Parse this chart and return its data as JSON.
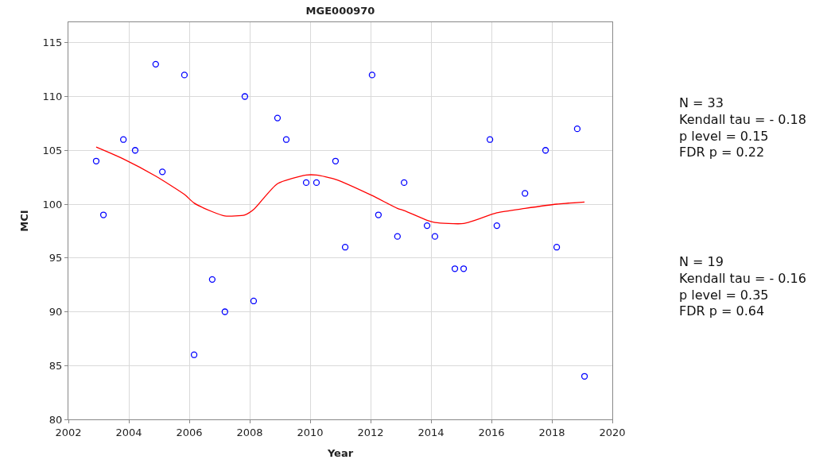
{
  "chart_data": {
    "type": "scatter",
    "title": "MGE000970",
    "xlabel": "Year",
    "ylabel": "MCI",
    "xlim": [
      2002,
      2020
    ],
    "xticks": [
      2002,
      2004,
      2006,
      2008,
      2010,
      2012,
      2014,
      2016,
      2018,
      2020
    ],
    "ylim": [
      80,
      116.9
    ],
    "yticks": [
      80,
      85,
      90,
      95,
      100,
      105,
      110,
      115
    ],
    "grid": true,
    "legend": false,
    "series": [
      {
        "marker": "circle",
        "color": "#0000ff",
        "x": [
          2002.92,
          2003.16,
          2003.82,
          2004.21,
          2004.89,
          2005.11,
          2005.84,
          2006.16,
          2006.76,
          2007.18,
          2007.84,
          2008.13,
          2008.92,
          2009.21,
          2009.87,
          2010.21,
          2010.84,
          2011.16,
          2012.05,
          2012.26,
          2012.89,
          2013.11,
          2013.87,
          2014.13,
          2014.79,
          2015.08,
          2015.95,
          2016.18,
          2017.11,
          2017.79,
          2018.16,
          2018.84,
          2019.08
        ],
        "values": [
          104,
          99,
          106,
          105,
          113,
          103,
          112,
          86,
          93,
          90,
          110,
          91,
          108,
          106,
          102,
          102,
          104,
          96,
          112,
          99,
          97,
          102,
          98,
          97,
          94,
          94,
          106,
          98,
          101,
          105,
          96,
          107,
          84
        ]
      },
      {
        "type": "line",
        "marker": "none",
        "color": "#ff0000",
        "x": [
          2002.92,
          2003.82,
          2004.89,
          2005.84,
          2006.16,
          2006.76,
          2007.18,
          2007.84,
          2008.13,
          2008.92,
          2009.87,
          2010.21,
          2010.84,
          2012.05,
          2012.89,
          2013.11,
          2013.87,
          2014.13,
          2015.08,
          2016.18,
          2017.11,
          2018.16,
          2019.08
        ],
        "values": [
          105.3,
          104.2,
          102.6,
          100.9,
          100.1,
          99.3,
          98.9,
          99.0,
          99.5,
          101.9,
          102.7,
          102.7,
          102.3,
          100.8,
          99.6,
          99.4,
          98.5,
          98.3,
          98.2,
          99.2,
          99.6,
          100.0,
          100.2
        ]
      }
    ],
    "annotations": [
      "N = 33\nKendall tau = - 0.18\np level = 0.15\nFDR p = 0.22",
      "N = 19\nKendall tau = - 0.16\np level = 0.35\nFDR p = 0.64"
    ]
  }
}
